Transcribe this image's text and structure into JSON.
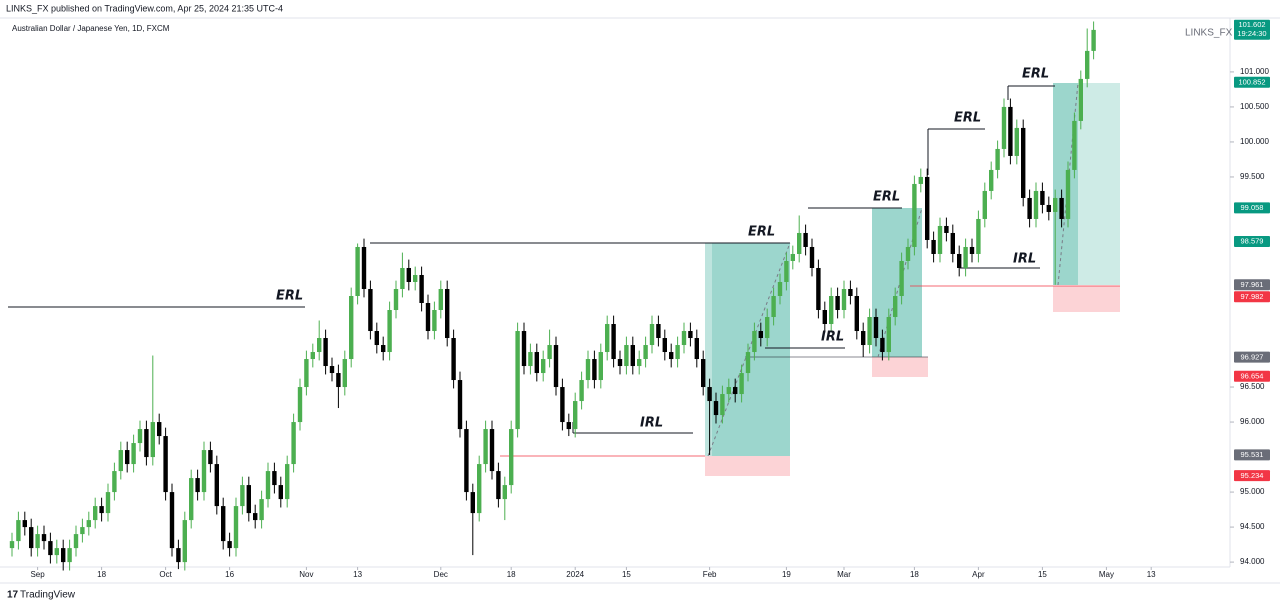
{
  "header": {
    "publisher": "LINKS_FX published on TradingView.com, Apr 25, 2024 21:35 UTC-4",
    "symbol": "Australian Dollar / Japanese Yen, 1D, FXCM",
    "watermark": "LINKS_FX",
    "footer": "TradingView",
    "countdown": "19:24:30"
  },
  "annotations": [
    "ERL",
    "ERL",
    "IRL",
    "ERL",
    "IRL",
    "ERL",
    "IRL",
    "ERL"
  ],
  "chart_data": {
    "type": "candlestick",
    "up_color": "#4caf50",
    "down_color": "#000000",
    "ylim": [
      93.93,
      101.77
    ],
    "yticks": [
      {
        "value": 101,
        "label": "101.000"
      },
      {
        "value": 100.5,
        "label": "100.500"
      },
      {
        "value": 100,
        "label": "100.000"
      },
      {
        "value": 99.5,
        "label": "99.500"
      },
      {
        "value": 96.5,
        "label": "96.500"
      },
      {
        "value": 96,
        "label": "96.000"
      },
      {
        "value": 95,
        "label": "95.000"
      },
      {
        "value": 94.5,
        "label": "94.500"
      },
      {
        "value": 94,
        "label": "94.000"
      }
    ],
    "xticks": [
      {
        "value": 4,
        "label": "Sep"
      },
      {
        "value": 14,
        "label": "18"
      },
      {
        "value": 24,
        "label": "Oct"
      },
      {
        "value": 34,
        "label": "16"
      },
      {
        "value": 46,
        "label": "Nov"
      },
      {
        "value": 54,
        "label": "13"
      },
      {
        "value": 67,
        "label": "Dec"
      },
      {
        "value": 78,
        "label": "18"
      },
      {
        "value": 88,
        "label": "2024"
      },
      {
        "value": 96,
        "label": "15"
      },
      {
        "value": 109,
        "label": "Feb"
      },
      {
        "value": 121,
        "label": "19"
      },
      {
        "value": 130,
        "label": "Mar"
      },
      {
        "value": 141,
        "label": "18"
      },
      {
        "value": 151,
        "label": "Apr"
      },
      {
        "value": 161,
        "label": "15"
      },
      {
        "value": 171,
        "label": "May"
      },
      {
        "value": 178,
        "label": "13"
      }
    ],
    "price_tags": [
      {
        "value": 101.602,
        "color": "#089981"
      },
      {
        "value": 100.852,
        "color": "#089981"
      },
      {
        "value": 99.058,
        "color": "#089981"
      },
      {
        "value": 98.579,
        "color": "#089981"
      },
      {
        "value": 97.961,
        "color": "#6a6d78"
      },
      {
        "value": 97.982,
        "color": "#f23645"
      },
      {
        "value": 96.927,
        "color": "#6a6d78"
      },
      {
        "value": 96.654,
        "color": "#f23645"
      },
      {
        "value": 95.531,
        "color": "#6a6d78"
      },
      {
        "value": 95.234,
        "color": "#f23645"
      }
    ],
    "ohlc": [
      [
        94.2,
        94.42,
        94.08,
        94.3
      ],
      [
        94.3,
        94.72,
        94.18,
        94.6
      ],
      [
        94.6,
        94.72,
        94.38,
        94.5
      ],
      [
        94.5,
        94.62,
        94.08,
        94.2
      ],
      [
        94.2,
        94.52,
        94.08,
        94.4
      ],
      [
        94.4,
        94.52,
        94.18,
        94.3
      ],
      [
        94.3,
        94.42,
        93.98,
        94.1
      ],
      [
        94.1,
        94.32,
        93.98,
        94.2
      ],
      [
        94.2,
        94.32,
        93.88,
        94.0
      ],
      [
        94.0,
        94.32,
        93.88,
        94.2
      ],
      [
        94.2,
        94.52,
        94.08,
        94.4
      ],
      [
        94.4,
        94.62,
        94.28,
        94.5
      ],
      [
        94.5,
        94.72,
        94.38,
        94.6
      ],
      [
        94.6,
        94.92,
        94.48,
        94.8
      ],
      [
        94.8,
        94.92,
        94.58,
        94.7
      ],
      [
        94.7,
        95.12,
        94.58,
        95.0
      ],
      [
        95.0,
        95.42,
        94.88,
        95.3
      ],
      [
        95.3,
        95.72,
        95.18,
        95.6
      ],
      [
        95.6,
        95.72,
        95.28,
        95.4
      ],
      [
        95.4,
        95.82,
        95.28,
        95.7
      ],
      [
        95.7,
        96.02,
        95.58,
        95.9
      ],
      [
        95.9,
        96.02,
        95.38,
        95.5
      ],
      [
        95.5,
        96.95,
        95.38,
        96.0
      ],
      [
        96.0,
        96.12,
        95.68,
        95.8
      ],
      [
        95.8,
        95.92,
        94.88,
        95.0
      ],
      [
        95.0,
        95.12,
        94.08,
        94.2
      ],
      [
        94.2,
        94.32,
        93.9,
        94.0
      ],
      [
        94.0,
        94.72,
        93.88,
        94.6
      ],
      [
        94.6,
        95.32,
        94.48,
        95.2
      ],
      [
        95.2,
        95.32,
        94.88,
        95.0
      ],
      [
        95.0,
        95.72,
        94.88,
        95.6
      ],
      [
        95.6,
        95.72,
        95.28,
        95.4
      ],
      [
        95.4,
        95.52,
        94.68,
        94.8
      ],
      [
        94.8,
        94.92,
        94.18,
        94.3
      ],
      [
        94.3,
        94.42,
        94.08,
        94.2
      ],
      [
        94.2,
        94.92,
        94.08,
        94.8
      ],
      [
        94.8,
        95.22,
        94.68,
        95.1
      ],
      [
        95.1,
        95.22,
        94.58,
        94.7
      ],
      [
        94.7,
        94.82,
        94.48,
        94.6
      ],
      [
        94.6,
        95.02,
        94.48,
        94.9
      ],
      [
        94.9,
        95.42,
        94.78,
        95.3
      ],
      [
        95.3,
        95.42,
        94.98,
        95.1
      ],
      [
        95.1,
        95.22,
        94.78,
        94.9
      ],
      [
        94.9,
        95.52,
        94.78,
        95.4
      ],
      [
        95.4,
        96.12,
        95.28,
        96.0
      ],
      [
        96.0,
        96.62,
        95.88,
        96.5
      ],
      [
        96.5,
        97.02,
        96.38,
        96.9
      ],
      [
        96.9,
        97.12,
        96.78,
        97.0
      ],
      [
        97.0,
        97.45,
        96.88,
        97.2
      ],
      [
        97.2,
        97.32,
        96.68,
        96.8
      ],
      [
        96.8,
        96.92,
        96.58,
        96.7
      ],
      [
        96.7,
        96.82,
        96.2,
        96.5
      ],
      [
        96.5,
        97.02,
        96.38,
        96.9
      ],
      [
        96.9,
        97.92,
        96.78,
        97.8
      ],
      [
        97.8,
        98.55,
        97.68,
        98.5
      ],
      [
        98.5,
        98.62,
        97.78,
        97.9
      ],
      [
        97.9,
        98.02,
        97.18,
        97.3
      ],
      [
        97.3,
        97.42,
        96.98,
        97.1
      ],
      [
        97.1,
        97.22,
        96.88,
        97.0
      ],
      [
        97.0,
        97.72,
        96.88,
        97.6
      ],
      [
        97.6,
        98.02,
        97.48,
        97.9
      ],
      [
        97.9,
        98.42,
        97.78,
        98.2
      ],
      [
        98.2,
        98.32,
        97.88,
        98.0
      ],
      [
        98.0,
        98.22,
        97.88,
        98.1
      ],
      [
        98.1,
        98.22,
        97.58,
        97.7
      ],
      [
        97.7,
        97.82,
        97.18,
        97.3
      ],
      [
        97.3,
        97.72,
        97.18,
        97.6
      ],
      [
        97.6,
        98.02,
        97.48,
        97.9
      ],
      [
        97.9,
        98.02,
        97.08,
        97.2
      ],
      [
        97.2,
        97.32,
        96.48,
        96.6
      ],
      [
        96.6,
        96.72,
        95.78,
        95.9
      ],
      [
        95.9,
        96.02,
        94.88,
        95.0
      ],
      [
        95.0,
        95.12,
        94.1,
        94.7
      ],
      [
        94.7,
        95.52,
        94.58,
        95.4
      ],
      [
        95.4,
        96.02,
        95.28,
        95.9
      ],
      [
        95.9,
        96.02,
        95.18,
        95.3
      ],
      [
        95.3,
        95.42,
        94.78,
        94.9
      ],
      [
        94.9,
        95.22,
        94.6,
        95.1
      ],
      [
        95.1,
        96.02,
        94.98,
        95.9
      ],
      [
        95.9,
        97.42,
        95.78,
        97.3
      ],
      [
        97.3,
        97.42,
        96.68,
        96.8
      ],
      [
        96.8,
        97.12,
        96.68,
        97.0
      ],
      [
        97.0,
        97.12,
        96.58,
        96.7
      ],
      [
        96.7,
        97.02,
        96.58,
        96.9
      ],
      [
        96.9,
        97.32,
        96.78,
        97.1
      ],
      [
        97.1,
        97.22,
        96.38,
        96.5
      ],
      [
        96.5,
        96.62,
        95.88,
        96.0
      ],
      [
        96.0,
        96.12,
        95.8,
        95.9
      ],
      [
        95.9,
        96.42,
        95.78,
        96.3
      ],
      [
        96.3,
        96.72,
        96.18,
        96.6
      ],
      [
        96.6,
        97.02,
        96.48,
        96.9
      ],
      [
        96.9,
        97.02,
        96.48,
        96.6
      ],
      [
        96.6,
        97.12,
        96.48,
        97.0
      ],
      [
        97.0,
        97.52,
        96.88,
        97.4
      ],
      [
        97.4,
        97.52,
        96.78,
        96.9
      ],
      [
        96.9,
        97.02,
        96.68,
        96.8
      ],
      [
        96.8,
        97.22,
        96.68,
        97.1
      ],
      [
        97.1,
        97.22,
        96.68,
        96.8
      ],
      [
        96.8,
        97.02,
        96.68,
        96.9
      ],
      [
        96.9,
        97.22,
        96.78,
        97.1
      ],
      [
        97.1,
        97.52,
        96.98,
        97.4
      ],
      [
        97.4,
        97.52,
        97.08,
        97.2
      ],
      [
        97.2,
        97.32,
        96.88,
        97.0
      ],
      [
        97.0,
        97.12,
        96.78,
        96.9
      ],
      [
        96.9,
        97.22,
        96.78,
        97.1
      ],
      [
        97.1,
        97.42,
        96.98,
        97.3
      ],
      [
        97.3,
        97.42,
        97.08,
        97.2
      ],
      [
        97.2,
        97.32,
        96.78,
        96.9
      ],
      [
        96.9,
        97.02,
        96.38,
        96.5
      ],
      [
        96.5,
        96.62,
        95.53,
        96.3
      ],
      [
        96.3,
        96.42,
        95.98,
        96.1
      ],
      [
        96.1,
        96.52,
        95.98,
        96.4
      ],
      [
        96.4,
        96.62,
        96.28,
        96.5
      ],
      [
        96.5,
        96.62,
        96.28,
        96.4
      ],
      [
        96.4,
        96.82,
        96.28,
        96.7
      ],
      [
        96.7,
        97.12,
        96.58,
        97.0
      ],
      [
        97.0,
        97.42,
        96.88,
        97.3
      ],
      [
        97.3,
        97.42,
        97.08,
        97.2
      ],
      [
        97.2,
        97.62,
        97.08,
        97.5
      ],
      [
        97.5,
        97.92,
        97.38,
        97.8
      ],
      [
        97.8,
        98.12,
        97.68,
        98.0
      ],
      [
        98.0,
        98.42,
        97.88,
        98.3
      ],
      [
        98.3,
        98.52,
        98.18,
        98.4
      ],
      [
        98.4,
        98.95,
        98.28,
        98.7
      ],
      [
        98.7,
        98.82,
        98.38,
        98.5
      ],
      [
        98.5,
        98.62,
        98.08,
        98.2
      ],
      [
        98.2,
        98.32,
        97.48,
        97.6
      ],
      [
        97.6,
        97.72,
        97.28,
        97.4
      ],
      [
        97.4,
        97.92,
        97.28,
        97.8
      ],
      [
        97.8,
        97.92,
        97.48,
        97.6
      ],
      [
        97.6,
        98.02,
        97.48,
        97.9
      ],
      [
        97.9,
        98.02,
        97.68,
        97.8
      ],
      [
        97.8,
        97.92,
        97.18,
        97.3
      ],
      [
        97.3,
        97.42,
        96.93,
        97.1
      ],
      [
        97.1,
        97.62,
        96.98,
        97.5
      ],
      [
        97.5,
        97.62,
        97.08,
        97.2
      ],
      [
        97.2,
        97.32,
        96.88,
        97.0
      ],
      [
        97.0,
        97.62,
        96.88,
        97.5
      ],
      [
        97.5,
        97.92,
        97.38,
        97.8
      ],
      [
        97.8,
        98.42,
        97.68,
        98.3
      ],
      [
        98.3,
        98.62,
        98.18,
        98.5
      ],
      [
        98.5,
        99.52,
        98.38,
        99.4
      ],
      [
        99.4,
        99.62,
        99.28,
        99.5
      ],
      [
        99.5,
        99.62,
        98.48,
        98.6
      ],
      [
        98.6,
        98.72,
        98.28,
        98.4
      ],
      [
        98.4,
        98.92,
        98.28,
        98.8
      ],
      [
        98.8,
        98.92,
        98.58,
        98.7
      ],
      [
        98.7,
        98.82,
        98.28,
        98.4
      ],
      [
        98.4,
        98.52,
        98.08,
        98.2
      ],
      [
        98.2,
        98.62,
        98.08,
        98.5
      ],
      [
        98.5,
        98.62,
        98.28,
        98.4
      ],
      [
        98.4,
        99.02,
        98.28,
        98.9
      ],
      [
        98.9,
        99.42,
        98.78,
        99.3
      ],
      [
        99.3,
        99.72,
        99.18,
        99.6
      ],
      [
        99.6,
        100.02,
        99.48,
        99.9
      ],
      [
        99.9,
        100.62,
        99.78,
        100.5
      ],
      [
        100.5,
        100.62,
        99.68,
        99.8
      ],
      [
        99.8,
        100.32,
        99.68,
        100.2
      ],
      [
        100.2,
        100.32,
        99.08,
        99.2
      ],
      [
        99.2,
        99.32,
        98.78,
        98.9
      ],
      [
        98.9,
        99.42,
        98.78,
        99.3
      ],
      [
        99.3,
        99.42,
        98.98,
        99.1
      ],
      [
        99.1,
        99.22,
        98.88,
        99.0
      ],
      [
        99.0,
        99.32,
        97.96,
        99.2
      ],
      [
        99.2,
        99.32,
        98.78,
        98.9
      ],
      [
        98.9,
        99.72,
        98.78,
        99.6
      ],
      [
        99.6,
        100.42,
        99.48,
        100.3
      ],
      [
        100.3,
        101.02,
        100.18,
        100.9
      ],
      [
        100.9,
        101.62,
        100.78,
        101.3
      ],
      [
        101.3,
        101.72,
        101.18,
        101.6
      ]
    ]
  }
}
